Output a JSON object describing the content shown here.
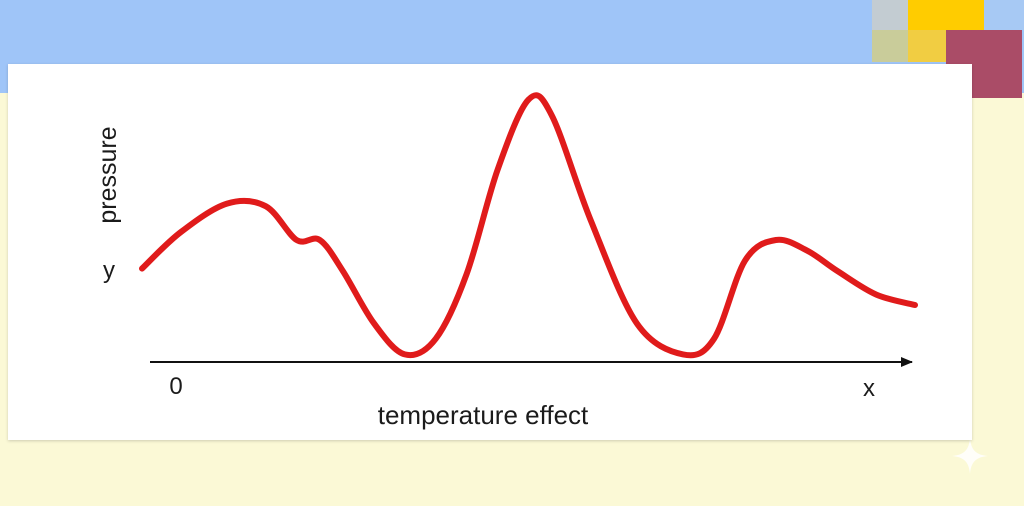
{
  "chart_data": {
    "type": "line",
    "title": "",
    "xlabel": "temperature effect",
    "ylabel": "pressure",
    "y_axis_letter": "y",
    "x_axis_letter": "x",
    "origin_label": "0",
    "xlim": [
      0,
      10
    ],
    "ylim": [
      0,
      10
    ],
    "grid": false,
    "legend": "none",
    "series": [
      {
        "color": "#e01b1b",
        "x": [
          0.0,
          0.5,
          1.1,
          1.6,
          2.0,
          2.3,
          2.6,
          3.0,
          3.4,
          3.8,
          4.2,
          4.6,
          5.0,
          5.3,
          5.8,
          6.4,
          7.0,
          7.4,
          7.8,
          8.2,
          8.6,
          9.0,
          9.5,
          10.0
        ],
        "y": [
          3.4,
          4.8,
          5.9,
          5.8,
          4.5,
          4.5,
          3.3,
          1.3,
          0.1,
          0.7,
          3.2,
          7.2,
          9.9,
          9.3,
          5.3,
          1.3,
          0.1,
          0.7,
          3.7,
          4.5,
          4.1,
          3.3,
          2.4,
          2.0
        ]
      }
    ]
  },
  "colors": {
    "background": "#fbf9d6",
    "sky_band": "#9fc5f8",
    "card": "#ffffff",
    "axis": "#111111",
    "curve": "#e01b1b"
  }
}
